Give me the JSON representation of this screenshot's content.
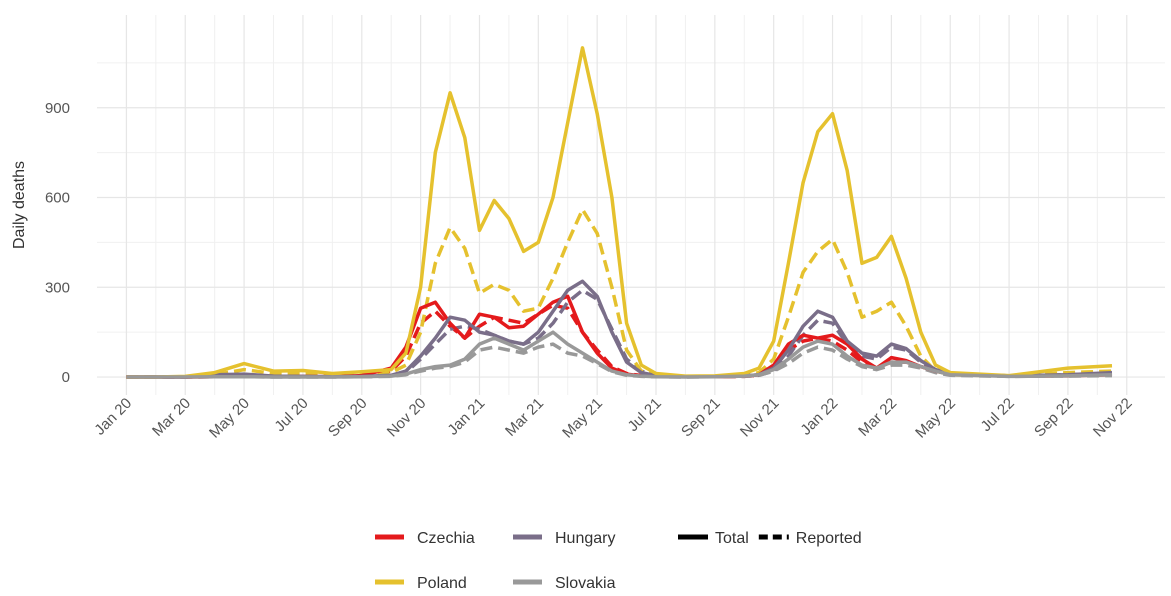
{
  "chart_data": {
    "type": "line",
    "y_label": "Daily deaths",
    "x": [
      0,
      1,
      2,
      3,
      4,
      5,
      6,
      7,
      8,
      9,
      9.5,
      10,
      10.5,
      11,
      11.5,
      12,
      12.5,
      13,
      13.5,
      14,
      14.5,
      15,
      15.5,
      16,
      16.5,
      17,
      17.5,
      18,
      19,
      20,
      21,
      21.5,
      22,
      22.5,
      23,
      23.5,
      24,
      24.5,
      25,
      25.5,
      26,
      26.5,
      27,
      27.5,
      28,
      30,
      32,
      33.5
    ],
    "xlim": [
      -1,
      35.3
    ],
    "xticks": [
      {
        "value": 0,
        "label": "Jan 20"
      },
      {
        "value": 2,
        "label": "Mar 20"
      },
      {
        "value": 4,
        "label": "May 20"
      },
      {
        "value": 6,
        "label": "Jul 20"
      },
      {
        "value": 8,
        "label": "Sep 20"
      },
      {
        "value": 10,
        "label": "Nov 20"
      },
      {
        "value": 12,
        "label": "Jan 21"
      },
      {
        "value": 14,
        "label": "Mar 21"
      },
      {
        "value": 16,
        "label": "May 21"
      },
      {
        "value": 18,
        "label": "Jul 21"
      },
      {
        "value": 20,
        "label": "Sep 21"
      },
      {
        "value": 22,
        "label": "Nov 21"
      },
      {
        "value": 24,
        "label": "Jan 22"
      },
      {
        "value": 26,
        "label": "Mar 22"
      },
      {
        "value": 28,
        "label": "May 22"
      },
      {
        "value": 30,
        "label": "Jul 22"
      },
      {
        "value": 32,
        "label": "Sep 22"
      },
      {
        "value": 34,
        "label": "Nov 22"
      }
    ],
    "ylim": [
      -60,
      1210
    ],
    "yticks": [
      0,
      300,
      600,
      900
    ],
    "grid": true,
    "series": [
      {
        "name": "Czechia",
        "color": "#e41a1c",
        "values": [
          0,
          0,
          0,
          1,
          3,
          1,
          2,
          1,
          5,
          30,
          100,
          230,
          250,
          180,
          130,
          210,
          200,
          165,
          170,
          210,
          250,
          270,
          150,
          80,
          30,
          10,
          4,
          2,
          1,
          1,
          3,
          8,
          40,
          110,
          140,
          130,
          140,
          110,
          60,
          30,
          65,
          55,
          35,
          20,
          12,
          4,
          5,
          10
        ],
        "reported_values": [
          0,
          0,
          0,
          1,
          2,
          1,
          1,
          1,
          4,
          20,
          70,
          180,
          220,
          170,
          130,
          170,
          200,
          190,
          180,
          210,
          240,
          230,
          150,
          90,
          35,
          12,
          5,
          2,
          1,
          1,
          2,
          6,
          30,
          90,
          120,
          130,
          120,
          90,
          50,
          30,
          50,
          50,
          35,
          20,
          10,
          3,
          4,
          8
        ]
      },
      {
        "name": "Hungary",
        "color": "#7a6e89",
        "values": [
          0,
          0,
          0,
          8,
          10,
          3,
          2,
          1,
          2,
          6,
          20,
          70,
          130,
          200,
          190,
          150,
          140,
          120,
          110,
          150,
          220,
          290,
          320,
          270,
          150,
          50,
          15,
          5,
          2,
          2,
          4,
          8,
          30,
          90,
          170,
          220,
          200,
          120,
          80,
          70,
          110,
          95,
          55,
          25,
          12,
          4,
          8,
          15
        ],
        "reported_values": [
          0,
          0,
          0,
          6,
          8,
          2,
          1,
          1,
          1,
          4,
          15,
          60,
          110,
          160,
          170,
          160,
          140,
          120,
          110,
          130,
          180,
          250,
          290,
          260,
          160,
          60,
          20,
          5,
          2,
          2,
          3,
          6,
          20,
          70,
          140,
          190,
          180,
          110,
          70,
          60,
          100,
          90,
          50,
          25,
          12,
          4,
          8,
          12
        ]
      },
      {
        "name": "Poland",
        "color": "#e5c12e",
        "values": [
          0,
          0,
          2,
          15,
          45,
          20,
          22,
          12,
          18,
          25,
          80,
          300,
          750,
          950,
          800,
          490,
          590,
          530,
          420,
          450,
          600,
          850,
          1100,
          880,
          600,
          180,
          40,
          12,
          3,
          4,
          12,
          30,
          120,
          380,
          650,
          820,
          880,
          690,
          380,
          400,
          470,
          330,
          150,
          40,
          15,
          5,
          30,
          38
        ],
        "reported_values": [
          0,
          0,
          1,
          8,
          25,
          12,
          12,
          8,
          10,
          15,
          40,
          150,
          380,
          500,
          430,
          280,
          310,
          290,
          220,
          230,
          330,
          450,
          560,
          480,
          300,
          90,
          20,
          6,
          2,
          2,
          6,
          15,
          60,
          200,
          350,
          420,
          460,
          350,
          200,
          220,
          250,
          170,
          70,
          20,
          8,
          3,
          15,
          20
        ]
      },
      {
        "name": "Slovakia",
        "color": "#999999",
        "values": [
          0,
          0,
          0,
          1,
          1,
          0,
          0,
          0,
          1,
          3,
          10,
          25,
          35,
          40,
          60,
          110,
          130,
          110,
          90,
          120,
          150,
          110,
          80,
          50,
          20,
          8,
          3,
          1,
          0,
          1,
          3,
          8,
          25,
          60,
          100,
          120,
          110,
          70,
          40,
          30,
          50,
          50,
          35,
          20,
          8,
          2,
          4,
          8
        ],
        "reported_values": [
          0,
          0,
          0,
          1,
          1,
          0,
          0,
          0,
          1,
          2,
          8,
          20,
          30,
          35,
          50,
          90,
          100,
          90,
          80,
          100,
          110,
          80,
          70,
          45,
          18,
          6,
          2,
          1,
          0,
          1,
          2,
          6,
          20,
          45,
          80,
          100,
          90,
          60,
          35,
          25,
          40,
          40,
          30,
          15,
          6,
          2,
          3,
          5
        ]
      }
    ],
    "linetype_legend": [
      {
        "label": "Total",
        "key": "values",
        "dash": "solid"
      },
      {
        "label": "Reported",
        "key": "reported_values",
        "dash": "dashed"
      }
    ]
  }
}
